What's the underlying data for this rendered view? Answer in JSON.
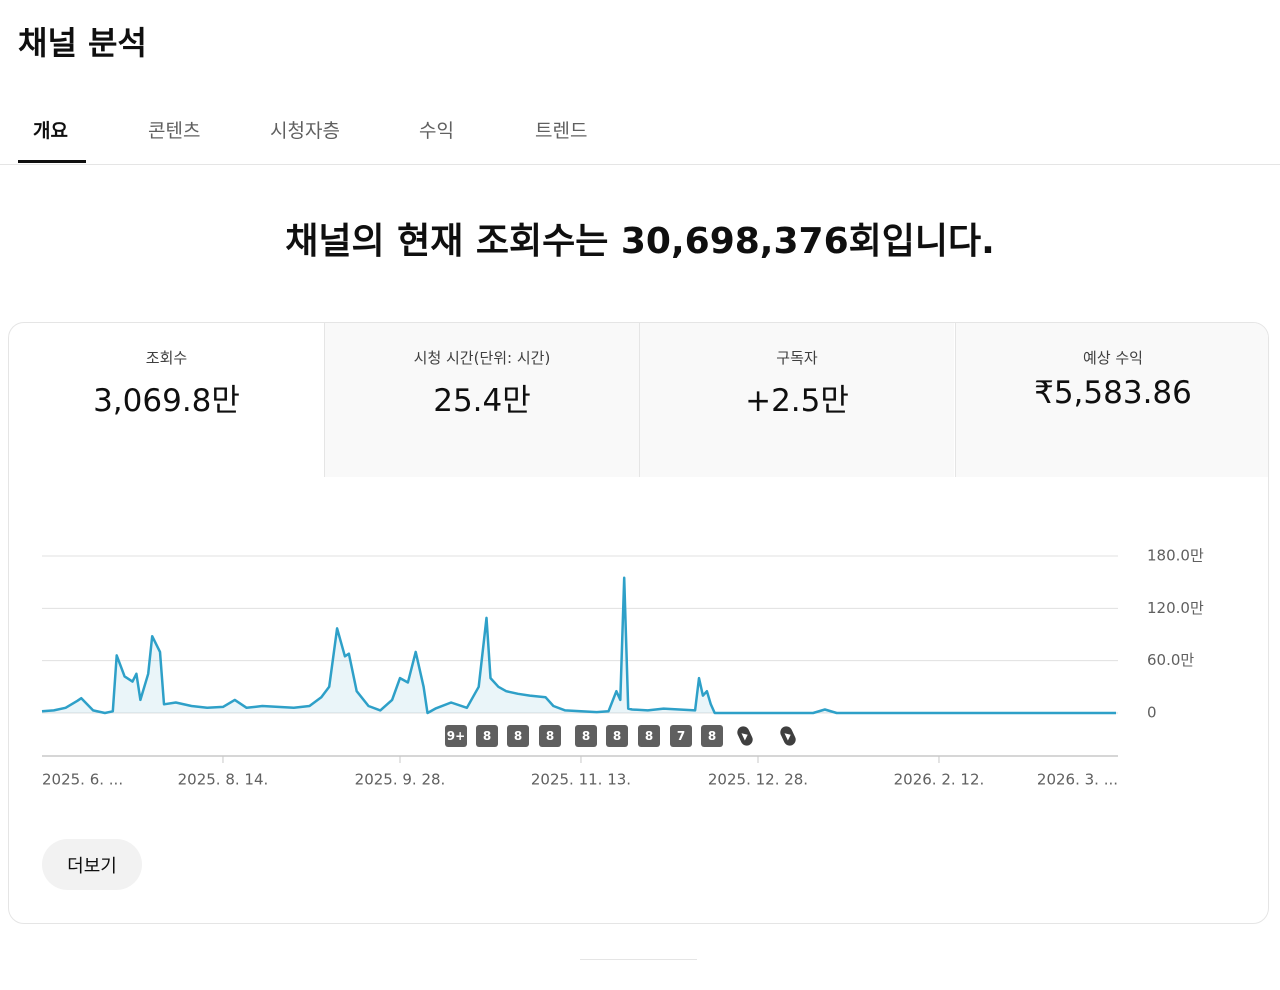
{
  "header": {
    "title": "채널 분석"
  },
  "tabs": [
    "개요",
    "콘텐츠",
    "시청자층",
    "수익",
    "트렌드"
  ],
  "headline": "채널의 현재 조회수는 30,698,376회입니다.",
  "metrics": [
    {
      "label": "조회수",
      "value": "3,069.8만"
    },
    {
      "label": "시청 시간(단위: 시간)",
      "value": "25.4만"
    },
    {
      "label": "구독자",
      "value": "+2.5만"
    },
    {
      "label": "예상 수익",
      "value": "₹5,583.86"
    }
  ],
  "chart_data": {
    "type": "line",
    "color": "#2ea0c8",
    "grid": true,
    "x": [
      0,
      3,
      6,
      9,
      10,
      13,
      16,
      18,
      19,
      21,
      23,
      24,
      25,
      27,
      28,
      30,
      31,
      34,
      38,
      42,
      46,
      49,
      52,
      56,
      60,
      64,
      68,
      71,
      73,
      75,
      77,
      78,
      80,
      83,
      86,
      89,
      91,
      93,
      95,
      97,
      98,
      100,
      104,
      108,
      111,
      113,
      114,
      116,
      118,
      121,
      124,
      128,
      130,
      133,
      137,
      141,
      144,
      146,
      147,
      148,
      149,
      150,
      154,
      158,
      162,
      166,
      167,
      168,
      169,
      170,
      171,
      175,
      196,
      199,
      202,
      273
    ],
    "values": [
      2,
      3,
      6,
      14,
      17,
      3,
      0,
      2,
      66,
      42,
      36,
      45,
      15,
      45,
      88,
      70,
      10,
      12,
      8,
      6,
      7,
      15,
      6,
      8,
      7,
      6,
      8,
      18,
      30,
      97,
      65,
      68,
      25,
      8,
      3,
      15,
      40,
      35,
      70,
      30,
      0,
      5,
      12,
      6,
      30,
      109,
      40,
      30,
      25,
      22,
      20,
      18,
      8,
      3,
      2,
      1,
      2,
      25,
      15,
      155,
      5,
      4,
      3,
      5,
      4,
      3,
      40,
      20,
      25,
      10,
      0,
      0,
      0,
      4,
      0,
      0
    ],
    "xlim": [
      0,
      273
    ],
    "xticks": [
      {
        "value": 0,
        "label": "2025. 6. ..."
      },
      {
        "value": 46,
        "label": "2025. 8. 14."
      },
      {
        "value": 91,
        "label": "2025. 9. 28."
      },
      {
        "value": 137,
        "label": "2025. 11. 13."
      },
      {
        "value": 182,
        "label": "2025. 12. 28."
      },
      {
        "value": 228,
        "label": "2026. 2. 12."
      },
      {
        "value": 273,
        "label": "2026. 3. ..."
      }
    ],
    "ylim": [
      0,
      180
    ],
    "yticks": [
      0,
      {
        "value": 60,
        "label": "60.0만"
      },
      {
        "value": 120,
        "label": "120.0만"
      },
      {
        "value": 180,
        "label": "180.0만"
      }
    ],
    "upload_badges": [
      "9+",
      "8",
      "8",
      "8",
      "8",
      "8",
      "8",
      "7",
      "8"
    ]
  },
  "button": "더보기"
}
